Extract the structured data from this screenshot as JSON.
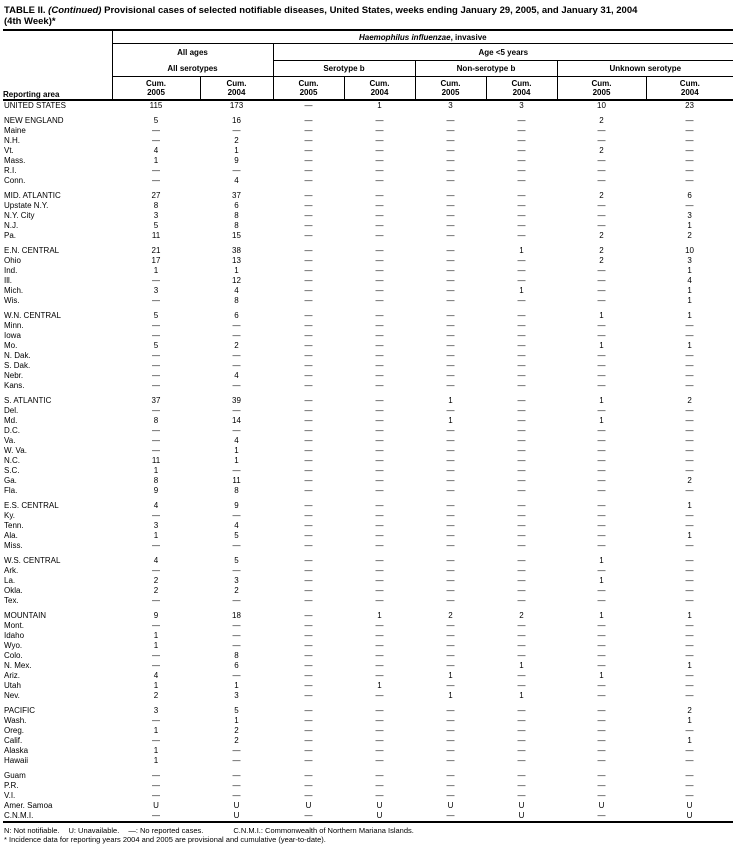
{
  "title": {
    "part1": "TABLE II.",
    "part2": "(Continued)",
    "part3": "Provisional cases of selected notifiable diseases, United States, weeks ending January 29, 2005, and January 31, 2004",
    "part4": "(4th Week)*"
  },
  "table": {
    "reporting_area_label": "Reporting area",
    "spanners": {
      "disease_italic": "Haemophilus influenzae",
      "disease_rest": ", invasive",
      "all_ages": "All ages",
      "age_lt5": "Age <5 years",
      "subgroups": [
        "All serotypes",
        "Serotype b",
        "Non-serotype b",
        "Unknown serotype"
      ]
    },
    "columns": [
      {
        "line1": "Cum.",
        "line2": "2005"
      },
      {
        "line1": "Cum.",
        "line2": "2004"
      },
      {
        "line1": "Cum.",
        "line2": "2005"
      },
      {
        "line1": "Cum.",
        "line2": "2004"
      },
      {
        "line1": "Cum.",
        "line2": "2005"
      },
      {
        "line1": "Cum.",
        "line2": "2004"
      },
      {
        "line1": "Cum.",
        "line2": "2005"
      },
      {
        "line1": "Cum.",
        "line2": "2004"
      }
    ],
    "groups": [
      {
        "rows": [
          {
            "area": "UNITED STATES",
            "values": [
              "115",
              "173",
              "—",
              "1",
              "3",
              "3",
              "10",
              "23"
            ]
          }
        ]
      },
      {
        "rows": [
          {
            "area": "NEW ENGLAND",
            "values": [
              "5",
              "16",
              "—",
              "—",
              "—",
              "—",
              "2",
              "—"
            ]
          },
          {
            "area": "Maine",
            "values": [
              "—",
              "—",
              "—",
              "—",
              "—",
              "—",
              "—",
              "—"
            ]
          },
          {
            "area": "N.H.",
            "values": [
              "—",
              "2",
              "—",
              "—",
              "—",
              "—",
              "—",
              "—"
            ]
          },
          {
            "area": "Vt.",
            "values": [
              "4",
              "1",
              "—",
              "—",
              "—",
              "—",
              "2",
              "—"
            ]
          },
          {
            "area": "Mass.",
            "values": [
              "1",
              "9",
              "—",
              "—",
              "—",
              "—",
              "—",
              "—"
            ]
          },
          {
            "area": "R.I.",
            "values": [
              "—",
              "—",
              "—",
              "—",
              "—",
              "—",
              "—",
              "—"
            ]
          },
          {
            "area": "Conn.",
            "values": [
              "—",
              "4",
              "—",
              "—",
              "—",
              "—",
              "—",
              "—"
            ]
          }
        ]
      },
      {
        "rows": [
          {
            "area": "MID. ATLANTIC",
            "values": [
              "27",
              "37",
              "—",
              "—",
              "—",
              "—",
              "2",
              "6"
            ]
          },
          {
            "area": "Upstate N.Y.",
            "values": [
              "8",
              "6",
              "—",
              "—",
              "—",
              "—",
              "—",
              "—"
            ]
          },
          {
            "area": "N.Y. City",
            "values": [
              "3",
              "8",
              "—",
              "—",
              "—",
              "—",
              "—",
              "3"
            ]
          },
          {
            "area": "N.J.",
            "values": [
              "5",
              "8",
              "—",
              "—",
              "—",
              "—",
              "—",
              "1"
            ]
          },
          {
            "area": "Pa.",
            "values": [
              "11",
              "15",
              "—",
              "—",
              "—",
              "—",
              "2",
              "2"
            ]
          }
        ]
      },
      {
        "rows": [
          {
            "area": "E.N. CENTRAL",
            "values": [
              "21",
              "38",
              "—",
              "—",
              "—",
              "1",
              "2",
              "10"
            ]
          },
          {
            "area": "Ohio",
            "values": [
              "17",
              "13",
              "—",
              "—",
              "—",
              "—",
              "2",
              "3"
            ]
          },
          {
            "area": "Ind.",
            "values": [
              "1",
              "1",
              "—",
              "—",
              "—",
              "—",
              "—",
              "1"
            ]
          },
          {
            "area": "Ill.",
            "values": [
              "—",
              "12",
              "—",
              "—",
              "—",
              "—",
              "—",
              "4"
            ]
          },
          {
            "area": "Mich.",
            "values": [
              "3",
              "4",
              "—",
              "—",
              "—",
              "1",
              "—",
              "1"
            ]
          },
          {
            "area": "Wis.",
            "values": [
              "—",
              "8",
              "—",
              "—",
              "—",
              "—",
              "—",
              "1"
            ]
          }
        ]
      },
      {
        "rows": [
          {
            "area": "W.N. CENTRAL",
            "values": [
              "5",
              "6",
              "—",
              "—",
              "—",
              "—",
              "1",
              "1"
            ]
          },
          {
            "area": "Minn.",
            "values": [
              "—",
              "—",
              "—",
              "—",
              "—",
              "—",
              "—",
              "—"
            ]
          },
          {
            "area": "Iowa",
            "values": [
              "—",
              "—",
              "—",
              "—",
              "—",
              "—",
              "—",
              "—"
            ]
          },
          {
            "area": "Mo.",
            "values": [
              "5",
              "2",
              "—",
              "—",
              "—",
              "—",
              "1",
              "1"
            ]
          },
          {
            "area": "N. Dak.",
            "values": [
              "—",
              "—",
              "—",
              "—",
              "—",
              "—",
              "—",
              "—"
            ]
          },
          {
            "area": "S. Dak.",
            "values": [
              "—",
              "—",
              "—",
              "—",
              "—",
              "—",
              "—",
              "—"
            ]
          },
          {
            "area": "Nebr.",
            "values": [
              "—",
              "4",
              "—",
              "—",
              "—",
              "—",
              "—",
              "—"
            ]
          },
          {
            "area": "Kans.",
            "values": [
              "—",
              "—",
              "—",
              "—",
              "—",
              "—",
              "—",
              "—"
            ]
          }
        ]
      },
      {
        "rows": [
          {
            "area": "S. ATLANTIC",
            "values": [
              "37",
              "39",
              "—",
              "—",
              "1",
              "—",
              "1",
              "2"
            ]
          },
          {
            "area": "Del.",
            "values": [
              "—",
              "—",
              "—",
              "—",
              "—",
              "—",
              "—",
              "—"
            ]
          },
          {
            "area": "Md.",
            "values": [
              "8",
              "14",
              "—",
              "—",
              "1",
              "—",
              "1",
              "—"
            ]
          },
          {
            "area": "D.C.",
            "values": [
              "—",
              "—",
              "—",
              "—",
              "—",
              "—",
              "—",
              "—"
            ]
          },
          {
            "area": "Va.",
            "values": [
              "—",
              "4",
              "—",
              "—",
              "—",
              "—",
              "—",
              "—"
            ]
          },
          {
            "area": "W. Va.",
            "values": [
              "—",
              "1",
              "—",
              "—",
              "—",
              "—",
              "—",
              "—"
            ]
          },
          {
            "area": "N.C.",
            "values": [
              "11",
              "1",
              "—",
              "—",
              "—",
              "—",
              "—",
              "—"
            ]
          },
          {
            "area": "S.C.",
            "values": [
              "1",
              "—",
              "—",
              "—",
              "—",
              "—",
              "—",
              "—"
            ]
          },
          {
            "area": "Ga.",
            "values": [
              "8",
              "11",
              "—",
              "—",
              "—",
              "—",
              "—",
              "2"
            ]
          },
          {
            "area": "Fla.",
            "values": [
              "9",
              "8",
              "—",
              "—",
              "—",
              "—",
              "—",
              "—"
            ]
          }
        ]
      },
      {
        "rows": [
          {
            "area": "E.S. CENTRAL",
            "values": [
              "4",
              "9",
              "—",
              "—",
              "—",
              "—",
              "—",
              "1"
            ]
          },
          {
            "area": "Ky.",
            "values": [
              "—",
              "—",
              "—",
              "—",
              "—",
              "—",
              "—",
              "—"
            ]
          },
          {
            "area": "Tenn.",
            "values": [
              "3",
              "4",
              "—",
              "—",
              "—",
              "—",
              "—",
              "—"
            ]
          },
          {
            "area": "Ala.",
            "values": [
              "1",
              "5",
              "—",
              "—",
              "—",
              "—",
              "—",
              "1"
            ]
          },
          {
            "area": "Miss.",
            "values": [
              "—",
              "—",
              "—",
              "—",
              "—",
              "—",
              "—",
              "—"
            ]
          }
        ]
      },
      {
        "rows": [
          {
            "area": "W.S. CENTRAL",
            "values": [
              "4",
              "5",
              "—",
              "—",
              "—",
              "—",
              "1",
              "—"
            ]
          },
          {
            "area": "Ark.",
            "values": [
              "—",
              "—",
              "—",
              "—",
              "—",
              "—",
              "—",
              "—"
            ]
          },
          {
            "area": "La.",
            "values": [
              "2",
              "3",
              "—",
              "—",
              "—",
              "—",
              "1",
              "—"
            ]
          },
          {
            "area": "Okla.",
            "values": [
              "2",
              "2",
              "—",
              "—",
              "—",
              "—",
              "—",
              "—"
            ]
          },
          {
            "area": "Tex.",
            "values": [
              "—",
              "—",
              "—",
              "—",
              "—",
              "—",
              "—",
              "—"
            ]
          }
        ]
      },
      {
        "rows": [
          {
            "area": "MOUNTAIN",
            "values": [
              "9",
              "18",
              "—",
              "1",
              "2",
              "2",
              "1",
              "1"
            ]
          },
          {
            "area": "Mont.",
            "values": [
              "—",
              "—",
              "—",
              "—",
              "—",
              "—",
              "—",
              "—"
            ]
          },
          {
            "area": "Idaho",
            "values": [
              "1",
              "—",
              "—",
              "—",
              "—",
              "—",
              "—",
              "—"
            ]
          },
          {
            "area": "Wyo.",
            "values": [
              "1",
              "—",
              "—",
              "—",
              "—",
              "—",
              "—",
              "—"
            ]
          },
          {
            "area": "Colo.",
            "values": [
              "—",
              "8",
              "—",
              "—",
              "—",
              "—",
              "—",
              "—"
            ]
          },
          {
            "area": "N. Mex.",
            "values": [
              "—",
              "6",
              "—",
              "—",
              "—",
              "1",
              "—",
              "1"
            ]
          },
          {
            "area": "Ariz.",
            "values": [
              "4",
              "—",
              "—",
              "—",
              "1",
              "—",
              "1",
              "—"
            ]
          },
          {
            "area": "Utah",
            "values": [
              "1",
              "1",
              "—",
              "1",
              "—",
              "—",
              "—",
              "—"
            ]
          },
          {
            "area": "Nev.",
            "values": [
              "2",
              "3",
              "—",
              "—",
              "1",
              "1",
              "—",
              "—"
            ]
          }
        ]
      },
      {
        "rows": [
          {
            "area": "PACIFIC",
            "values": [
              "3",
              "5",
              "—",
              "—",
              "—",
              "—",
              "—",
              "2"
            ]
          },
          {
            "area": "Wash.",
            "values": [
              "—",
              "1",
              "—",
              "—",
              "—",
              "—",
              "—",
              "1"
            ]
          },
          {
            "area": "Oreg.",
            "values": [
              "1",
              "2",
              "—",
              "—",
              "—",
              "—",
              "—",
              "—"
            ]
          },
          {
            "area": "Calif.",
            "values": [
              "—",
              "2",
              "—",
              "—",
              "—",
              "—",
              "—",
              "1"
            ]
          },
          {
            "area": "Alaska",
            "values": [
              "1",
              "—",
              "—",
              "—",
              "—",
              "—",
              "—",
              "—"
            ]
          },
          {
            "area": "Hawaii",
            "values": [
              "1",
              "—",
              "—",
              "—",
              "—",
              "—",
              "—",
              "—"
            ]
          }
        ]
      },
      {
        "rows": [
          {
            "area": "Guam",
            "values": [
              "—",
              "—",
              "—",
              "—",
              "—",
              "—",
              "—",
              "—"
            ]
          },
          {
            "area": "P.R.",
            "values": [
              "—",
              "—",
              "—",
              "—",
              "—",
              "—",
              "—",
              "—"
            ]
          },
          {
            "area": "V.I.",
            "values": [
              "—",
              "—",
              "—",
              "—",
              "—",
              "—",
              "—",
              "—"
            ]
          },
          {
            "area": "Amer. Samoa",
            "values": [
              "U",
              "U",
              "U",
              "U",
              "U",
              "U",
              "U",
              "U"
            ]
          },
          {
            "area": "C.N.M.I.",
            "values": [
              "—",
              "U",
              "—",
              "U",
              "—",
              "U",
              "—",
              "U"
            ]
          }
        ]
      }
    ]
  },
  "footnotes": {
    "legend": [
      "N: Not notifiable.",
      "U: Unavailable.",
      "—: No reported cases.",
      "C.N.M.I.: Commonwealth of Northern Mariana Islands."
    ],
    "note": "* Incidence data for reporting years 2004 and 2005 are provisional and cumulative (year-to-date)."
  }
}
